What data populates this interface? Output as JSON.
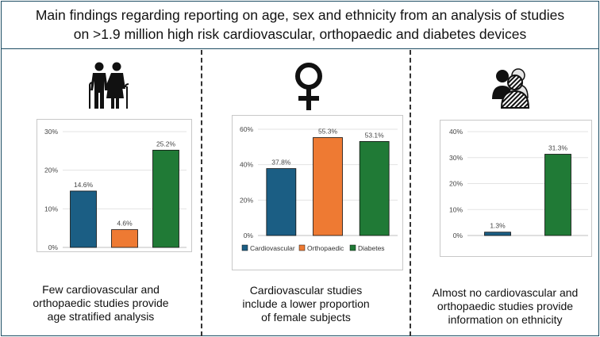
{
  "header": {
    "title_line1": "Main findings regarding reporting on age, sex and ethnicity from an analysis of studies",
    "title_line2": "on >1.9 million high risk cardiovascular, orthopaedic and diabetes devices"
  },
  "colors": {
    "cardiovascular": "#1b5e84",
    "orthopaedic": "#ee7a33",
    "diabetes": "#207a36",
    "border": "#1d4d63"
  },
  "legend": {
    "items": [
      {
        "label": "Cardiovascular",
        "color": "#1b5e84"
      },
      {
        "label": "Orthopaedic",
        "color": "#ee7a33"
      },
      {
        "label": "Diabetes",
        "color": "#207a36"
      }
    ]
  },
  "panels": [
    {
      "icon": "elderly-couple-icon",
      "caption": [
        "Few cardiovascular and",
        "orthopaedic studies provide",
        "age stratified analysis"
      ]
    },
    {
      "icon": "female-symbol-icon",
      "caption": [
        "Cardiovascular studies",
        "include a lower proportion",
        "of female subjects"
      ]
    },
    {
      "icon": "diverse-people-icon",
      "caption": [
        "Almost no cardiovascular and",
        "orthopaedic studies provide",
        "information on ethnicity"
      ]
    }
  ],
  "chart_data": [
    {
      "type": "bar",
      "title": "",
      "categories": [
        "Cardiovascular",
        "Orthopaedic",
        "Diabetes"
      ],
      "values": [
        14.6,
        4.6,
        25.2
      ],
      "data_labels": [
        "14.6%",
        "4.6%",
        "25.2%"
      ],
      "ylim": [
        0,
        30
      ],
      "yticks": [
        "0%",
        "10%",
        "20%",
        "30%"
      ],
      "grid": true,
      "legend": false
    },
    {
      "type": "bar",
      "title": "",
      "categories": [
        "Cardiovascular",
        "Orthopaedic",
        "Diabetes"
      ],
      "values": [
        37.8,
        55.3,
        53.1
      ],
      "data_labels": [
        "37.8%",
        "55.3%",
        "53.1%"
      ],
      "ylim": [
        0,
        60
      ],
      "yticks": [
        "0%",
        "20%",
        "40%",
        "60%"
      ],
      "grid": true,
      "legend": "bottom"
    },
    {
      "type": "bar",
      "title": "",
      "categories": [
        "Cardiovascular",
        "Diabetes"
      ],
      "values": [
        1.3,
        31.3
      ],
      "data_labels": [
        "1.3%",
        "31.3%"
      ],
      "ylim": [
        0,
        40
      ],
      "yticks": [
        "0%",
        "10%",
        "20%",
        "30%",
        "40%"
      ],
      "grid": true,
      "legend": false
    }
  ]
}
